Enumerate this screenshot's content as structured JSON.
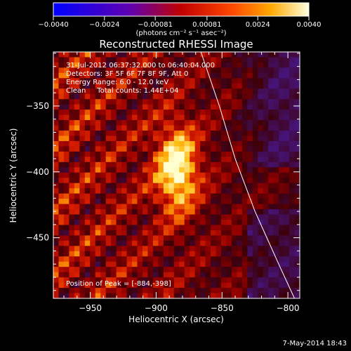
{
  "chart_data": {
    "type": "heatmap",
    "title": "Reconstructed RHESSI Image",
    "xlabel": "Heliocentric X (arcsec)",
    "ylabel": "Heliocentric Y (arcsec)",
    "xlim": [
      -978,
      -791
    ],
    "ylim": [
      -496,
      -309
    ],
    "x_ticks": [
      -950,
      -900,
      -850,
      -800
    ],
    "x_tick_labels": [
      "−950",
      "−900",
      "−850",
      "−800"
    ],
    "y_ticks": [
      -350,
      -400,
      -450
    ],
    "y_tick_labels": [
      "−350",
      "−400",
      "−450"
    ],
    "colorbar": {
      "range": [
        -0.004,
        0.004
      ],
      "ticks": [
        -0.004,
        -0.0024,
        -0.00081,
        0.00081,
        0.0024,
        0.004
      ],
      "tick_labels": [
        "−0.0040",
        "−0.0024",
        "−0.00081",
        "0.00081",
        "0.0024",
        "0.0040"
      ],
      "unit_label": "(photons cm⁻² s⁻¹ asec⁻²)",
      "colors": [
        "#0000ff",
        "#7000a0",
        "#c00000",
        "#ff5000",
        "#ffb000",
        "#ffffd0"
      ]
    },
    "annotations": [
      "31-Jul-2012 06:37:32.000 to 06:40:04.000",
      "Detectors: 3F 5F 6F 7F 8F 9F, Att 0",
      "Energy Range: 6.0 - 12.0 keV",
      "Clean     Total counts: 1.44E+04"
    ],
    "peak_label": "Position of Peak = [-884,-398]",
    "peak": [
      -884,
      -398
    ],
    "limb_line": [
      [
        -866,
        -309
      ],
      [
        -852,
        -350
      ],
      [
        -840,
        -390
      ],
      [
        -825,
        -430
      ],
      [
        -807,
        -470
      ],
      [
        -795,
        -496
      ]
    ],
    "grid": false
  },
  "footer": {
    "date": "7-May-2014 18:43"
  }
}
